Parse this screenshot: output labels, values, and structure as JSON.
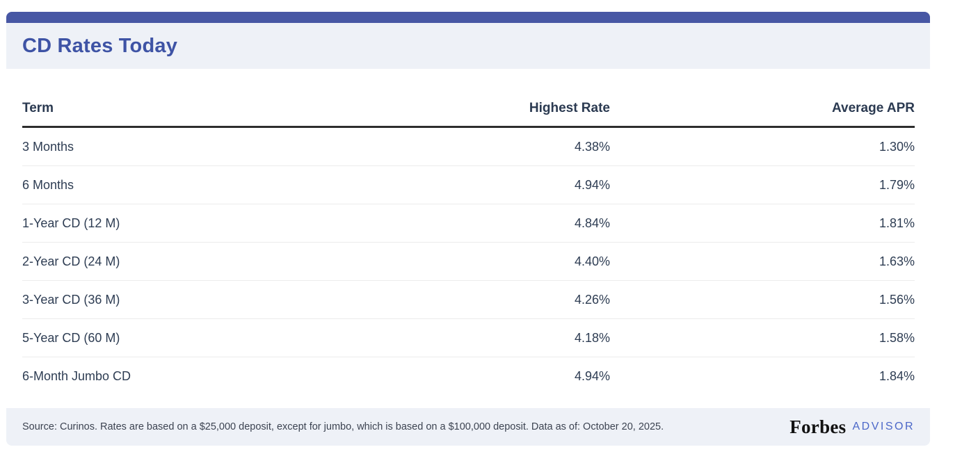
{
  "card": {
    "title": "CD Rates Today",
    "table": {
      "columns": [
        "Term",
        "Highest Rate",
        "Average APR"
      ],
      "rows": [
        {
          "term": "3 Months",
          "highest_rate": "4.38%",
          "average_apr": "1.30%"
        },
        {
          "term": "6 Months",
          "highest_rate": "4.94%",
          "average_apr": "1.79%"
        },
        {
          "term": "1-Year CD (12 M)",
          "highest_rate": "4.84%",
          "average_apr": "1.81%"
        },
        {
          "term": "2-Year CD (24 M)",
          "highest_rate": "4.40%",
          "average_apr": "1.63%"
        },
        {
          "term": "3-Year CD (36 M)",
          "highest_rate": "4.26%",
          "average_apr": "1.56%"
        },
        {
          "term": "5-Year CD (60 M)",
          "highest_rate": "4.18%",
          "average_apr": "1.58%"
        },
        {
          "term": "6-Month Jumbo CD",
          "highest_rate": "4.94%",
          "average_apr": "1.84%"
        }
      ]
    },
    "footer": {
      "source_text": "Source: Curinos. Rates are based on a $25,000 deposit, except for jumbo, which is based on a $100,000 deposit. Data as of: October 20, 2025.",
      "brand_name": "Forbes",
      "brand_suffix": "ADVISOR"
    },
    "colors": {
      "accent_bar": "#4757a4",
      "title_text": "#3e53a5",
      "band_background": "#eef1f7",
      "table_text": "#2e3d53",
      "advisor_blue": "#4b67c8"
    }
  },
  "chart_data": {
    "type": "table",
    "title": "CD Rates Today",
    "columns": [
      "Term",
      "Highest Rate",
      "Average APR"
    ],
    "categories": [
      "3 Months",
      "6 Months",
      "1-Year CD (12 M)",
      "2-Year CD (24 M)",
      "3-Year CD (36 M)",
      "5-Year CD (60 M)",
      "6-Month Jumbo CD"
    ],
    "series": [
      {
        "name": "Highest Rate",
        "values": [
          4.38,
          4.94,
          4.84,
          4.4,
          4.26,
          4.18,
          4.94
        ]
      },
      {
        "name": "Average APR",
        "values": [
          1.3,
          1.79,
          1.81,
          1.63,
          1.56,
          1.58,
          1.84
        ]
      }
    ]
  }
}
